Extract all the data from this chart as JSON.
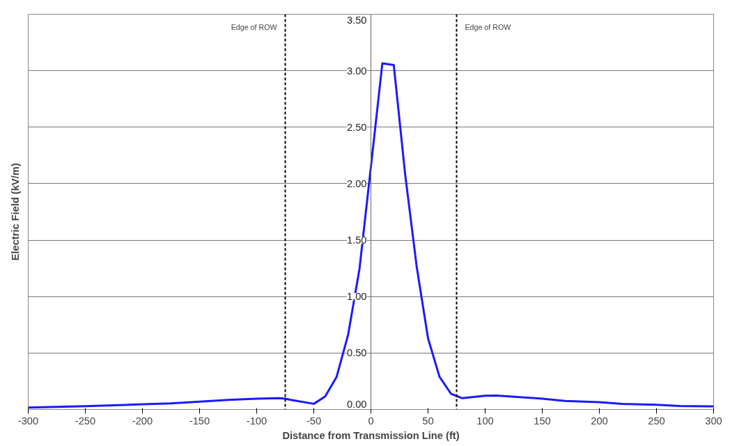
{
  "chart_data": {
    "type": "line",
    "xlabel": "Distance from Transmission Line (ft)",
    "ylabel": "Electric Field (kV/m)",
    "x": [
      -300,
      -250,
      -220,
      -200,
      -175,
      -150,
      -125,
      -100,
      -80,
      -75,
      -70,
      -50,
      -40,
      -30,
      -20,
      -10,
      0,
      10,
      20,
      30,
      40,
      50,
      60,
      70,
      80,
      100,
      110,
      130,
      150,
      170,
      200,
      220,
      250,
      270,
      300
    ],
    "series": [
      {
        "color": "#1a1aff",
        "values": [
          0.017,
          0.029,
          0.038,
          0.046,
          0.054,
          0.069,
          0.084,
          0.096,
          0.1,
          0.096,
          0.085,
          0.05,
          0.115,
          0.29,
          0.66,
          1.245,
          2.15,
          3.065,
          3.05,
          2.08,
          1.27,
          0.63,
          0.29,
          0.14,
          0.1,
          0.121,
          0.123,
          0.11,
          0.096,
          0.075,
          0.065,
          0.05,
          0.042,
          0.031,
          0.027
        ]
      }
    ],
    "xlim": [
      -300,
      300
    ],
    "ylim": [
      0,
      3.5
    ],
    "xticks": [
      -300,
      -250,
      -200,
      -150,
      -100,
      -50,
      0,
      50,
      100,
      150,
      200,
      250,
      300
    ],
    "yticks": [
      {
        "value": 0,
        "label": "0.00"
      },
      {
        "value": 0.5,
        "label": "0.50"
      },
      {
        "value": 1,
        "label": "1.00"
      },
      {
        "value": 1.5,
        "label": "1.50"
      },
      {
        "value": 2,
        "label": "2.00"
      },
      {
        "value": 2.5,
        "label": "2.50"
      },
      {
        "value": 3,
        "label": "3.00"
      },
      {
        "value": 3.5,
        "label": "3.50"
      }
    ],
    "grid": "y",
    "marker": "none",
    "line_style": "solid",
    "ref_lines": [
      {
        "axis": "x",
        "value": -75,
        "label": "Edge of ROW",
        "color": "#000000",
        "line_style": "dashed"
      },
      {
        "axis": "x",
        "value": 75,
        "label": "Edge of ROW",
        "color": "#000000",
        "line_style": "dashed"
      }
    ]
  }
}
